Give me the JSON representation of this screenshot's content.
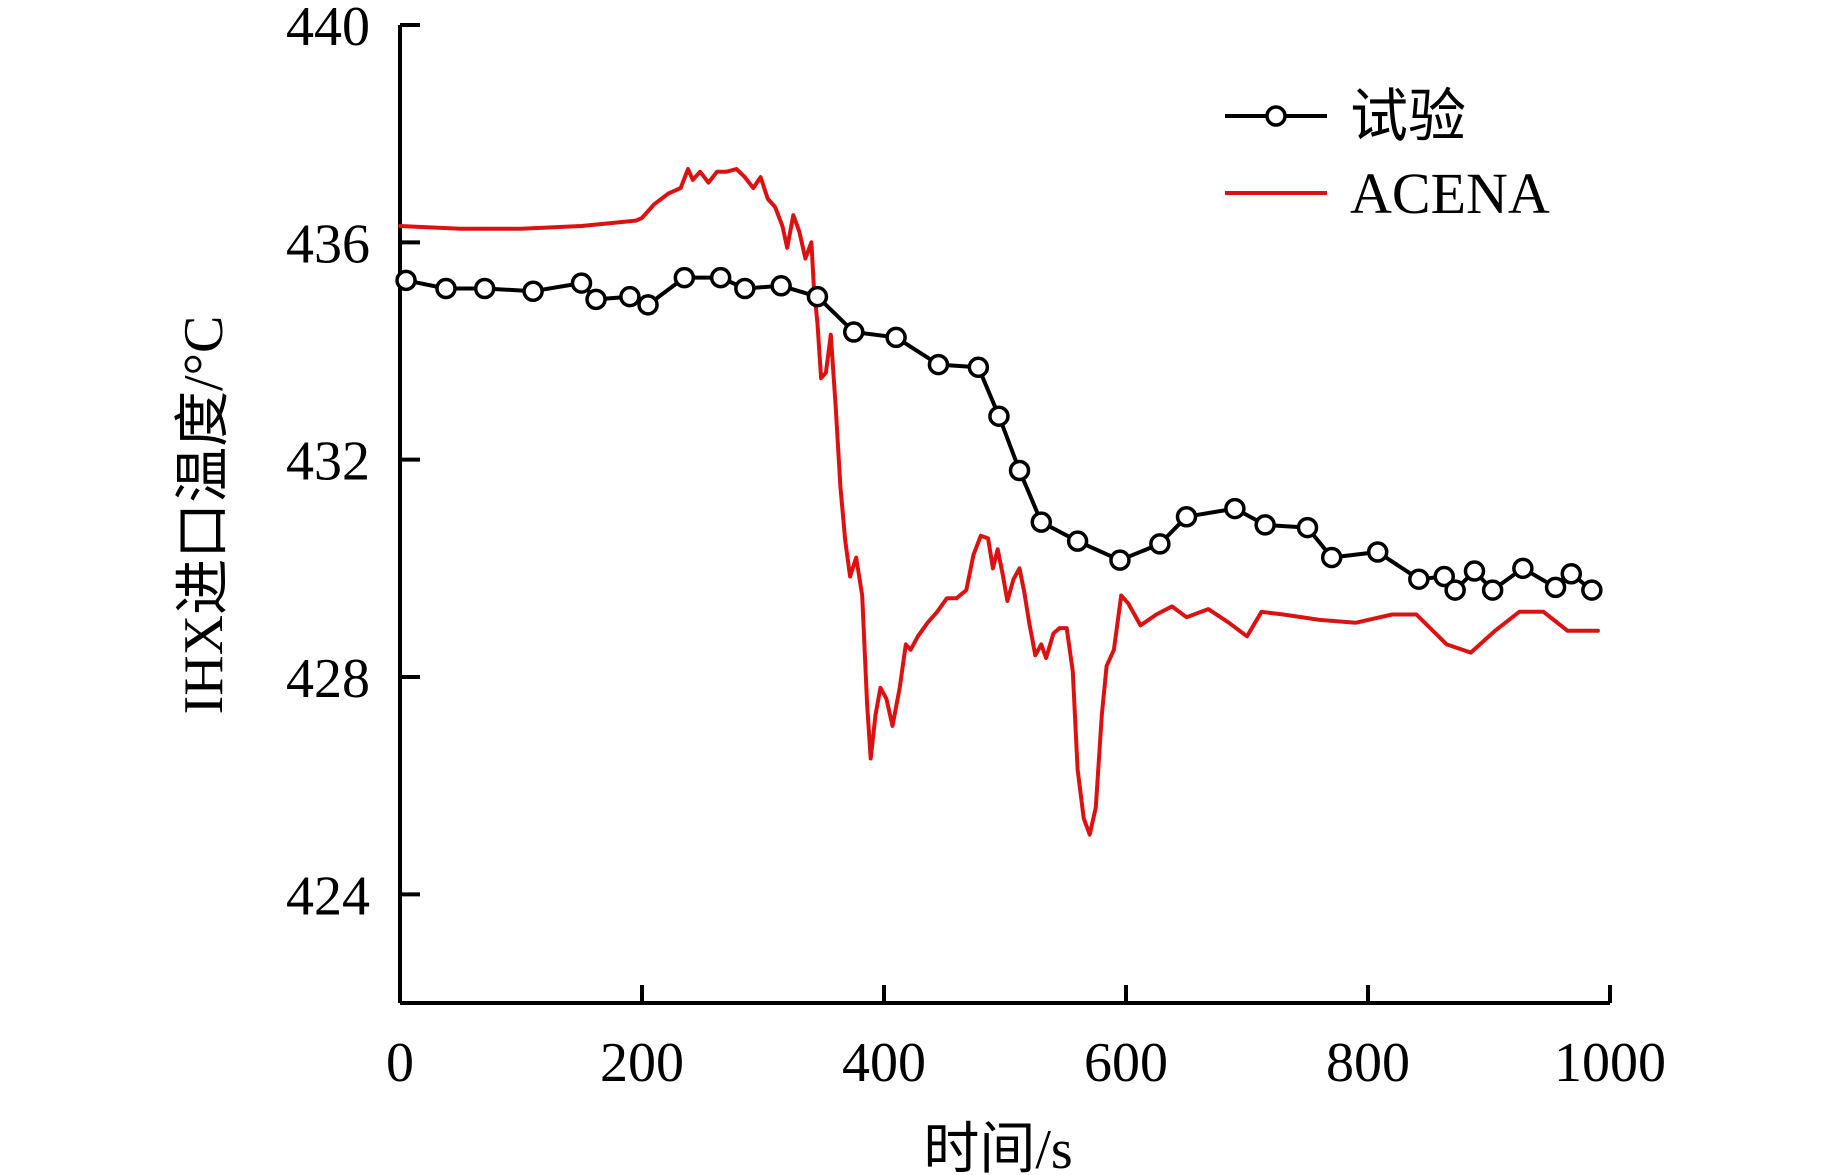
{
  "chart_data": {
    "type": "line",
    "title": "",
    "xlabel": "时间/s",
    "ylabel": "IHX进口温度/°C",
    "xlim": [
      0,
      1000
    ],
    "ylim": [
      422,
      440
    ],
    "x_ticks": [
      0,
      200,
      400,
      600,
      800,
      1000
    ],
    "y_ticks": [
      424,
      428,
      432,
      436,
      440
    ],
    "x_tick_labels": [
      "0",
      "200",
      "400",
      "600",
      "800",
      "1000"
    ],
    "y_tick_labels": [
      "424",
      "428",
      "432",
      "436",
      "440"
    ],
    "grid": false,
    "legend_position": "top-right",
    "series": [
      {
        "name": "试验",
        "color": "#000000",
        "marker": "open-circle",
        "points": [
          [
            5,
            435.3
          ],
          [
            38,
            435.15
          ],
          [
            70,
            435.15
          ],
          [
            110,
            435.1
          ],
          [
            150,
            435.25
          ],
          [
            162,
            434.95
          ],
          [
            190,
            435.0
          ],
          [
            205,
            434.85
          ],
          [
            235,
            435.35
          ],
          [
            265,
            435.35
          ],
          [
            285,
            435.15
          ],
          [
            315,
            435.2
          ],
          [
            345,
            435.0
          ],
          [
            375,
            434.35
          ],
          [
            410,
            434.25
          ],
          [
            445,
            433.75
          ],
          [
            478,
            433.7
          ],
          [
            495,
            432.8
          ],
          [
            512,
            431.8
          ],
          [
            530,
            430.85
          ],
          [
            560,
            430.5
          ],
          [
            595,
            430.15
          ],
          [
            628,
            430.45
          ],
          [
            650,
            430.95
          ],
          [
            690,
            431.1
          ],
          [
            715,
            430.8
          ],
          [
            750,
            430.75
          ],
          [
            770,
            430.2
          ],
          [
            808,
            430.3
          ],
          [
            842,
            429.8
          ],
          [
            863,
            429.85
          ],
          [
            872,
            429.6
          ],
          [
            888,
            429.95
          ],
          [
            903,
            429.6
          ],
          [
            928,
            430.0
          ],
          [
            955,
            429.65
          ],
          [
            968,
            429.9
          ],
          [
            985,
            429.6
          ]
        ]
      },
      {
        "name": "ACENA",
        "color": "#dd1111",
        "marker": "none",
        "points": [
          [
            0,
            436.3
          ],
          [
            50,
            436.25
          ],
          [
            100,
            436.25
          ],
          [
            150,
            436.3
          ],
          [
            195,
            436.4
          ],
          [
            200,
            436.45
          ],
          [
            210,
            436.7
          ],
          [
            222,
            436.9
          ],
          [
            232,
            437.0
          ],
          [
            238,
            437.35
          ],
          [
            242,
            437.15
          ],
          [
            248,
            437.3
          ],
          [
            255,
            437.1
          ],
          [
            262,
            437.3
          ],
          [
            270,
            437.3
          ],
          [
            278,
            437.35
          ],
          [
            285,
            437.2
          ],
          [
            292,
            437.0
          ],
          [
            298,
            437.2
          ],
          [
            304,
            436.8
          ],
          [
            310,
            436.65
          ],
          [
            316,
            436.3
          ],
          [
            320,
            435.9
          ],
          [
            325,
            436.5
          ],
          [
            330,
            436.2
          ],
          [
            335,
            435.7
          ],
          [
            340,
            436.0
          ],
          [
            342,
            435.2
          ],
          [
            345,
            434.5
          ],
          [
            348,
            433.5
          ],
          [
            352,
            433.6
          ],
          [
            356,
            434.3
          ],
          [
            360,
            433.0
          ],
          [
            364,
            431.5
          ],
          [
            368,
            430.5
          ],
          [
            372,
            429.85
          ],
          [
            377,
            430.2
          ],
          [
            382,
            429.5
          ],
          [
            386,
            427.5
          ],
          [
            389,
            426.5
          ],
          [
            393,
            427.3
          ],
          [
            397,
            427.8
          ],
          [
            402,
            427.6
          ],
          [
            407,
            427.1
          ],
          [
            413,
            427.8
          ],
          [
            418,
            428.6
          ],
          [
            422,
            428.5
          ],
          [
            428,
            428.75
          ],
          [
            436,
            429.0
          ],
          [
            444,
            429.2
          ],
          [
            452,
            429.45
          ],
          [
            460,
            429.45
          ],
          [
            468,
            429.6
          ],
          [
            474,
            430.25
          ],
          [
            480,
            430.6
          ],
          [
            486,
            430.55
          ],
          [
            490,
            430.0
          ],
          [
            494,
            430.35
          ],
          [
            498,
            429.9
          ],
          [
            502,
            429.4
          ],
          [
            507,
            429.8
          ],
          [
            512,
            430.0
          ],
          [
            516,
            429.55
          ],
          [
            520,
            429.0
          ],
          [
            525,
            428.4
          ],
          [
            530,
            428.6
          ],
          [
            534,
            428.35
          ],
          [
            540,
            428.8
          ],
          [
            545,
            428.9
          ],
          [
            551,
            428.9
          ],
          [
            556,
            428.1
          ],
          [
            560,
            426.3
          ],
          [
            565,
            425.4
          ],
          [
            570,
            425.1
          ],
          [
            575,
            425.6
          ],
          [
            580,
            427.3
          ],
          [
            584,
            428.2
          ],
          [
            590,
            428.5
          ],
          [
            596,
            429.5
          ],
          [
            602,
            429.35
          ],
          [
            612,
            428.95
          ],
          [
            625,
            429.15
          ],
          [
            638,
            429.3
          ],
          [
            650,
            429.1
          ],
          [
            668,
            429.25
          ],
          [
            685,
            429.0
          ],
          [
            700,
            428.75
          ],
          [
            712,
            429.2
          ],
          [
            730,
            429.15
          ],
          [
            760,
            429.05
          ],
          [
            790,
            429.0
          ],
          [
            820,
            429.15
          ],
          [
            840,
            429.15
          ],
          [
            865,
            428.6
          ],
          [
            885,
            428.45
          ],
          [
            905,
            428.85
          ],
          [
            925,
            429.2
          ],
          [
            945,
            429.2
          ],
          [
            965,
            428.85
          ],
          [
            980,
            428.85
          ],
          [
            990,
            428.85
          ]
        ]
      }
    ]
  }
}
